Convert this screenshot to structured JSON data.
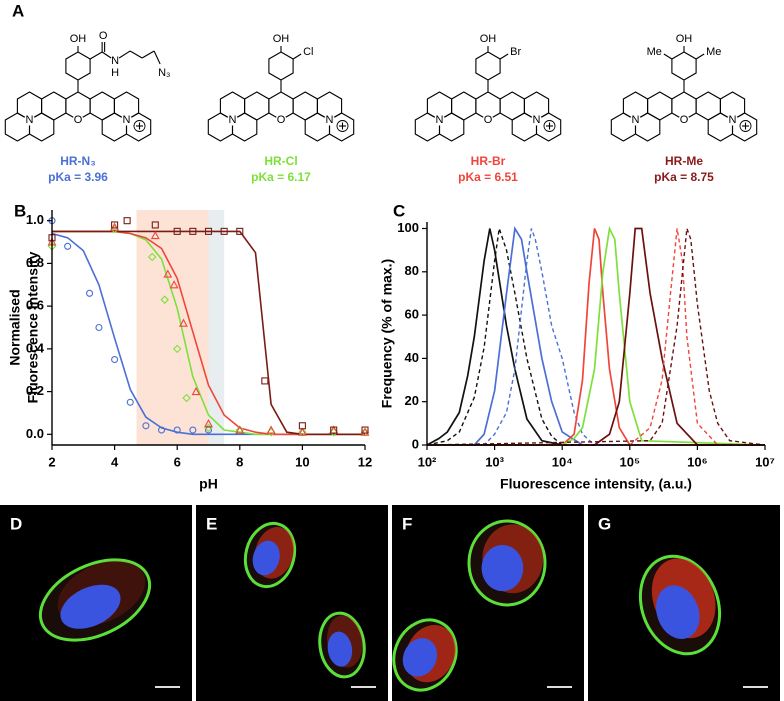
{
  "panel_a": {
    "label": "A",
    "structures": [
      {
        "name": "HR-N₃",
        "pka": "pKa = 3.96",
        "color": "#4a6fd6",
        "oh": "OH",
        "core": [
          "N",
          "O",
          "N"
        ],
        "groups": [
          "O",
          "N",
          "H",
          "N₃"
        ]
      },
      {
        "name": "HR-Cl",
        "pka": "pKa = 6.17",
        "color": "#7ee03a",
        "oh": "OH",
        "core": [
          "N",
          "O",
          "N"
        ],
        "groups": [
          "Cl"
        ]
      },
      {
        "name": "HR-Br",
        "pka": "pKa = 6.51",
        "color": "#f0453a",
        "oh": "OH",
        "core": [
          "N",
          "O",
          "N"
        ],
        "groups": [
          "Br"
        ]
      },
      {
        "name": "HR-Me",
        "pka": "pKa = 8.75",
        "color": "#8b1a1a",
        "oh": "OH",
        "core": [
          "N",
          "O",
          "N"
        ],
        "groups": [
          "Me",
          "Me"
        ]
      }
    ]
  },
  "chart_data": [
    {
      "type": "scatter-fit",
      "panel": "B",
      "xlabel": "pH",
      "ylabel": [
        "Normalised",
        "Fluorescence Intensity"
      ],
      "xlim": [
        2,
        12
      ],
      "xticks": [
        2,
        4,
        6,
        8,
        10,
        12
      ],
      "ylim": [
        -0.05,
        1.05
      ],
      "yticks": [
        {
          "value": 0,
          "label": "0.0"
        },
        {
          "value": 0.2,
          "label": "0.2"
        },
        {
          "value": 0.4,
          "label": "0.4"
        },
        {
          "value": 0.6,
          "label": "0.6"
        },
        {
          "value": 0.8,
          "label": "0.8"
        },
        {
          "value": 1,
          "label": "1.0"
        }
      ],
      "bands": [
        {
          "from": 4.7,
          "to": 7.0,
          "color": "#fde3d6"
        },
        {
          "from": 7.0,
          "to": 7.5,
          "color": "#e8eef0"
        }
      ],
      "fit_x": [
        2,
        2.5,
        3,
        3.5,
        4,
        4.5,
        5,
        5.5,
        6,
        6.5,
        7,
        7.5,
        8,
        8.5,
        9,
        9.5,
        10,
        10.5,
        11,
        11.5,
        12
      ],
      "series": [
        {
          "color": "#4a6fd6",
          "marker": "circle",
          "x": [
            2,
            2.5,
            3.2,
            3.5,
            4,
            4.5,
            5,
            5.5,
            6,
            6.5,
            7
          ],
          "values": [
            1.0,
            0.88,
            0.66,
            0.5,
            0.35,
            0.15,
            0.04,
            0.02,
            0.02,
            0.02,
            0.02
          ],
          "fit": [
            0.94,
            0.92,
            0.86,
            0.7,
            0.45,
            0.21,
            0.08,
            0.03,
            0.01,
            0,
            0,
            0,
            0,
            0,
            0,
            0,
            0,
            0,
            0,
            0,
            0
          ]
        },
        {
          "color": "#7ee03a",
          "marker": "diamond",
          "x": [
            2,
            4,
            5.2,
            5.6,
            6,
            6.3,
            7,
            8,
            9,
            10,
            11,
            12
          ],
          "values": [
            0.88,
            0.96,
            0.83,
            0.63,
            0.4,
            0.17,
            0.03,
            0.02,
            0.01,
            0.01,
            0.01,
            0.01
          ],
          "fit": [
            0.95,
            0.95,
            0.95,
            0.95,
            0.95,
            0.94,
            0.91,
            0.82,
            0.59,
            0.27,
            0.09,
            0.02,
            0.01,
            0,
            0,
            0,
            0,
            0,
            0,
            0,
            0
          ]
        },
        {
          "color": "#f0453a",
          "marker": "triangle",
          "x": [
            2,
            4,
            5.3,
            5.7,
            5.9,
            6.2,
            6.6,
            7,
            8,
            9,
            10,
            11,
            12
          ],
          "values": [
            0.9,
            0.97,
            0.93,
            0.75,
            0.7,
            0.52,
            0.2,
            0.05,
            0.02,
            0.02,
            0.01,
            0.02,
            0.01
          ],
          "fit": [
            0.95,
            0.95,
            0.95,
            0.95,
            0.95,
            0.94,
            0.92,
            0.87,
            0.73,
            0.48,
            0.23,
            0.09,
            0.03,
            0.01,
            0,
            0,
            0,
            0,
            0,
            0,
            0
          ]
        },
        {
          "color": "#7a1c16",
          "marker": "square",
          "x": [
            2,
            4,
            4.4,
            5.3,
            6,
            6.5,
            7,
            7.5,
            8,
            8.8,
            10,
            11,
            12
          ],
          "values": [
            0.92,
            0.98,
            1.0,
            0.98,
            0.95,
            0.95,
            0.95,
            0.95,
            0.95,
            0.25,
            0.04,
            0.02,
            0.02
          ],
          "fit": [
            0.95,
            0.95,
            0.95,
            0.95,
            0.95,
            0.95,
            0.95,
            0.95,
            0.95,
            0.95,
            0.95,
            0.95,
            0.95,
            0.85,
            0.14,
            0.01,
            0,
            0,
            0,
            0,
            0
          ]
        }
      ]
    },
    {
      "type": "line",
      "panel": "C",
      "xlabel": "Fluorescence intensity, (a.u.)",
      "ylabel": "Frequency (% of max.)",
      "log_x": true,
      "xlim": [
        100,
        10000000
      ],
      "xticks": [
        {
          "value": 100,
          "label": "10²"
        },
        {
          "value": 1000,
          "label": "10³"
        },
        {
          "value": 10000,
          "label": "10⁴"
        },
        {
          "value": 100000,
          "label": "10⁵"
        },
        {
          "value": 1000000,
          "label": "10⁶"
        },
        {
          "value": 10000000,
          "label": "10⁷"
        }
      ],
      "ylim": [
        0,
        103
      ],
      "yticks": [
        0,
        20,
        40,
        60,
        80,
        100
      ],
      "series": [
        {
          "color": "#111111",
          "dash": false,
          "x": [
            100,
            150,
            200,
            300,
            400,
            500,
            700,
            850,
            1000,
            1500,
            2000,
            3000,
            5000,
            10000,
            10000000
          ],
          "values": [
            0,
            3,
            6,
            15,
            32,
            50,
            85,
            100,
            90,
            55,
            35,
            12,
            2,
            0,
            0
          ]
        },
        {
          "color": "#111111",
          "dash": true,
          "x": [
            100,
            200,
            300,
            500,
            700,
            1000,
            1170,
            1500,
            2000,
            3000,
            5000,
            7000,
            10000,
            10000000
          ],
          "values": [
            0,
            2,
            6,
            22,
            45,
            85,
            100,
            90,
            70,
            40,
            12,
            4,
            0,
            0
          ]
        },
        {
          "color": "#4a6fd6",
          "dash": false,
          "x": [
            100,
            500,
            700,
            1000,
            1500,
            2000,
            2500,
            3000,
            5000,
            7000,
            10000,
            20000,
            10000000
          ],
          "values": [
            0,
            0,
            5,
            25,
            70,
            100,
            95,
            80,
            40,
            20,
            6,
            0,
            0
          ]
        },
        {
          "color": "#4a6fd6",
          "dash": true,
          "x": [
            100,
            700,
            1000,
            1500,
            2000,
            3000,
            3500,
            4000,
            5000,
            7000,
            10000,
            15000,
            20000,
            30000,
            10000000
          ],
          "values": [
            0,
            0,
            5,
            15,
            35,
            85,
            100,
            95,
            80,
            55,
            40,
            15,
            5,
            0,
            0
          ]
        },
        {
          "color": "#f0453a",
          "dash": false,
          "x": [
            100,
            10000,
            15000,
            20000,
            25000,
            30000,
            35000,
            40000,
            50000,
            70000,
            100000,
            10000000
          ],
          "values": [
            0,
            0,
            5,
            30,
            75,
            100,
            95,
            70,
            35,
            8,
            0,
            0
          ]
        },
        {
          "color": "#7ee03a",
          "dash": false,
          "x": [
            100,
            10000,
            15000,
            20000,
            30000,
            40000,
            50000,
            60000,
            70000,
            100000,
            150000,
            10000000
          ],
          "values": [
            0,
            0,
            3,
            8,
            35,
            80,
            100,
            95,
            70,
            20,
            2,
            0
          ]
        },
        {
          "color": "#6b1010",
          "dash": false,
          "x": [
            100,
            30000,
            50000,
            70000,
            100000,
            120000,
            150000,
            200000,
            300000,
            500000,
            1000000,
            10000000
          ],
          "values": [
            0,
            0,
            5,
            20,
            70,
            100,
            100,
            70,
            40,
            10,
            0,
            0
          ]
        },
        {
          "color": "#f0453a",
          "dash": true,
          "x": [
            100,
            100000,
            200000,
            300000,
            400000,
            500000,
            600000,
            700000,
            1000000,
            2000000,
            10000000
          ],
          "values": [
            0,
            0,
            8,
            30,
            70,
            100,
            85,
            50,
            10,
            0,
            0
          ]
        },
        {
          "color": "#6b1010",
          "dash": true,
          "x": [
            100,
            200000,
            300000,
            500000,
            700000,
            800000,
            1000000,
            1500000,
            2000000,
            3000000,
            10000000
          ],
          "values": [
            0,
            2,
            10,
            55,
            100,
            95,
            65,
            25,
            10,
            2,
            0
          ]
        }
      ]
    }
  ],
  "micrographs": [
    {
      "label": "D"
    },
    {
      "label": "E"
    },
    {
      "label": "F"
    },
    {
      "label": "G"
    }
  ]
}
